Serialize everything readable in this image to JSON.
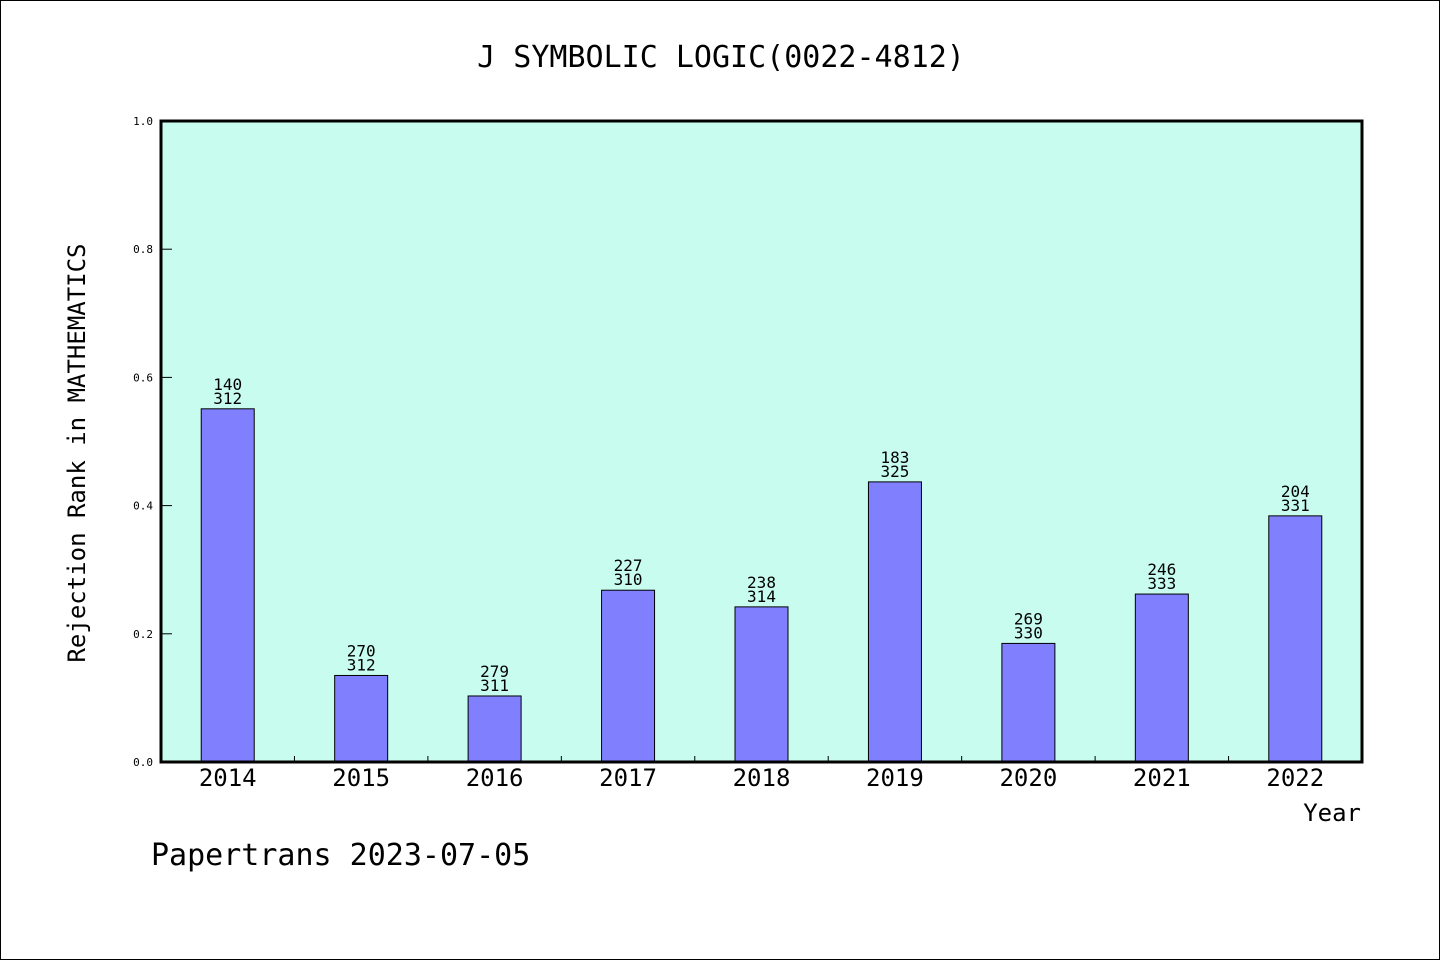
{
  "chart_data": {
    "type": "bar",
    "title": "J SYMBOLIC LOGIC(0022-4812)",
    "xlabel": "Year",
    "ylabel": "Rejection Rank in MATHEMATICS",
    "ylim": [
      0,
      1.0
    ],
    "yticks": [
      "0.0",
      "0.2",
      "0.4",
      "0.6",
      "0.8",
      "1.0"
    ],
    "categories": [
      "2014",
      "2015",
      "2016",
      "2017",
      "2018",
      "2019",
      "2020",
      "2021",
      "2022"
    ],
    "values": [
      0.551,
      0.135,
      0.103,
      0.268,
      0.242,
      0.437,
      0.185,
      0.262,
      0.384
    ],
    "rank_labels": [
      "140",
      "270",
      "279",
      "227",
      "238",
      "183",
      "269",
      "246",
      "204"
    ],
    "total_labels": [
      "312",
      "312",
      "311",
      "310",
      "314",
      "325",
      "330",
      "333",
      "331"
    ],
    "grid": false,
    "colors": {
      "plot_background": "#c8fcee",
      "bar_fill": "#8080ff",
      "bar_stroke": "#000000"
    }
  },
  "footer": {
    "text": "Papertrans 2023-07-05"
  }
}
